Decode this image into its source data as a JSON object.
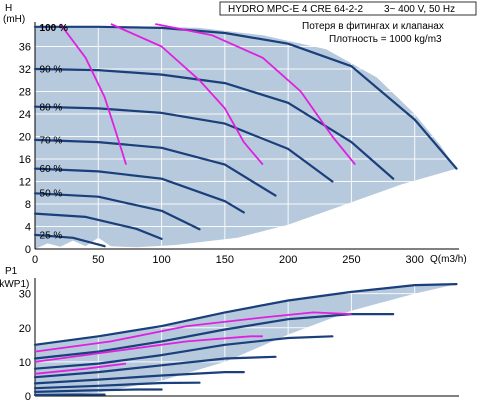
{
  "header": {
    "title": "HYDRO MPC-E 4 CRE 64-2-2",
    "supply": "3~ 400 V, 50 Hz",
    "note1": "Потеря в фитингах и клапанах",
    "note2": "Плотность = 1000 kg/m3"
  },
  "colors": {
    "envelope": "#b7c9dc",
    "speed_curve": "#1a3f7a",
    "system_curve": "#e020e0",
    "axis": "#000000"
  },
  "chart_data": [
    {
      "type": "area",
      "panel": "head",
      "ylabel_top": "H",
      "ylabel_unit": "(mH)",
      "xlabel": "Q(m3/h)",
      "xlim": [
        0,
        335
      ],
      "ylim": [
        0,
        40
      ],
      "x_ticks": [
        0,
        50,
        100,
        150,
        200,
        250,
        300
      ],
      "y_ticks": [
        0,
        4,
        8,
        12,
        16,
        20,
        24,
        28,
        32,
        36
      ],
      "envelope": [
        [
          0,
          39.5
        ],
        [
          30,
          39.6
        ],
        [
          80,
          39.6
        ],
        [
          130,
          39.3
        ],
        [
          180,
          38
        ],
        [
          230,
          35.5
        ],
        [
          270,
          30.5
        ],
        [
          300,
          24
        ],
        [
          320,
          18.5
        ],
        [
          333,
          14.3
        ],
        [
          290,
          11.5
        ],
        [
          240,
          7.5
        ],
        [
          200,
          4.3
        ],
        [
          160,
          2
        ],
        [
          110,
          0.7
        ],
        [
          80,
          0.3
        ],
        [
          60,
          0.5
        ],
        [
          50,
          2
        ],
        [
          40,
          0.5
        ],
        [
          30,
          1.5
        ],
        [
          20,
          0.4
        ],
        [
          10,
          1
        ],
        [
          0,
          0
        ]
      ],
      "speed_curves": [
        {
          "label": "100 %",
          "points": [
            [
              0,
              39.5
            ],
            [
              50,
              39.5
            ],
            [
              100,
              39.3
            ],
            [
              150,
              38.4
            ],
            [
              200,
              36.5
            ],
            [
              250,
              32.5
            ],
            [
              300,
              23
            ],
            [
              333,
              14.3
            ]
          ]
        },
        {
          "label": "90 %",
          "points": [
            [
              0,
              32
            ],
            [
              50,
              31.8
            ],
            [
              100,
              31
            ],
            [
              150,
              29.5
            ],
            [
              200,
              26
            ],
            [
              250,
              19
            ],
            [
              283,
              12.5
            ]
          ]
        },
        {
          "label": "80 %",
          "points": [
            [
              0,
              25.3
            ],
            [
              50,
              25
            ],
            [
              100,
              24.2
            ],
            [
              150,
              22.3
            ],
            [
              200,
              17.8
            ],
            [
              235,
              12
            ]
          ]
        },
        {
          "label": "70 %",
          "points": [
            [
              0,
              19.4
            ],
            [
              50,
              19
            ],
            [
              100,
              18
            ],
            [
              150,
              15
            ],
            [
              190,
              9.5
            ]
          ]
        },
        {
          "label": "60 %",
          "points": [
            [
              0,
              14.3
            ],
            [
              50,
              13.8
            ],
            [
              100,
              12.5
            ],
            [
              150,
              8.5
            ],
            [
              165,
              6.5
            ]
          ]
        },
        {
          "label": "50 %",
          "points": [
            [
              0,
              9.9
            ],
            [
              50,
              9.3
            ],
            [
              100,
              6.8
            ],
            [
              130,
              3.5
            ]
          ]
        },
        {
          "label": "",
          "points": [
            [
              0,
              6.3
            ],
            [
              40,
              5.7
            ],
            [
              80,
              3.6
            ],
            [
              100,
              1.8
            ]
          ]
        },
        {
          "label": "25 %",
          "points": [
            [
              0,
              2.5
            ],
            [
              30,
              2
            ],
            [
              55,
              0.5
            ]
          ]
        }
      ],
      "system_curves": [
        {
          "points": [
            [
              20,
              40
            ],
            [
              40,
              34
            ],
            [
              55,
              27
            ],
            [
              65,
              20
            ],
            [
              72,
              15
            ]
          ]
        },
        {
          "points": [
            [
              60,
              40
            ],
            [
              100,
              36
            ],
            [
              130,
              30
            ],
            [
              150,
              25
            ],
            [
              165,
              19
            ],
            [
              180,
              15
            ]
          ]
        },
        {
          "points": [
            [
              95,
              40
            ],
            [
              140,
              38
            ],
            [
              180,
              34
            ],
            [
              210,
              28
            ],
            [
              235,
              20
            ],
            [
              253,
              15
            ]
          ]
        }
      ],
      "percent_labels": [
        {
          "text": "100 %",
          "bold": true,
          "x": 2,
          "y": 38.8
        },
        {
          "text": "90 %",
          "bold": false,
          "x": 2,
          "y": 31.4
        },
        {
          "text": "80 %",
          "bold": false,
          "x": 2,
          "y": 24.6
        },
        {
          "text": "70 %",
          "bold": false,
          "x": 2,
          "y": 18.8
        },
        {
          "text": "60 %",
          "bold": false,
          "x": 2,
          "y": 13.7
        },
        {
          "text": "50 %",
          "bold": false,
          "x": 2,
          "y": 9.3
        },
        {
          "text": "25 %",
          "bold": false,
          "x": 2,
          "y": 1.9
        }
      ]
    },
    {
      "type": "area",
      "panel": "power",
      "ylabel_top": "P1",
      "ylabel_unit": "(kWP1)",
      "xlim": [
        0,
        335
      ],
      "ylim": [
        0,
        34
      ],
      "y_ticks": [
        0,
        10,
        20,
        30
      ],
      "envelope": [
        [
          0,
          15
        ],
        [
          50,
          17.5
        ],
        [
          100,
          20.5
        ],
        [
          150,
          24.5
        ],
        [
          200,
          28
        ],
        [
          250,
          30.5
        ],
        [
          300,
          32.5
        ],
        [
          333,
          32.8
        ],
        [
          300,
          30
        ],
        [
          250,
          25
        ],
        [
          200,
          18
        ],
        [
          150,
          10
        ],
        [
          100,
          4.5
        ],
        [
          50,
          1
        ],
        [
          0,
          0
        ]
      ],
      "speed_curves": [
        {
          "points": [
            [
              0,
              15
            ],
            [
              50,
              17.5
            ],
            [
              100,
              20.5
            ],
            [
              150,
              24.5
            ],
            [
              200,
              28
            ],
            [
              250,
              30.5
            ],
            [
              300,
              32.5
            ],
            [
              333,
              32.8
            ]
          ]
        },
        {
          "points": [
            [
              0,
              11
            ],
            [
              50,
              13
            ],
            [
              100,
              16
            ],
            [
              150,
              19.5
            ],
            [
              200,
              22.5
            ],
            [
              250,
              24
            ],
            [
              283,
              24
            ]
          ]
        },
        {
          "points": [
            [
              0,
              8
            ],
            [
              50,
              9.5
            ],
            [
              100,
              12
            ],
            [
              150,
              15
            ],
            [
              200,
              17
            ],
            [
              235,
              17.5
            ]
          ]
        },
        {
          "points": [
            [
              0,
              5.5
            ],
            [
              50,
              7
            ],
            [
              100,
              9
            ],
            [
              150,
              11
            ],
            [
              190,
              11.5
            ]
          ]
        },
        {
          "points": [
            [
              0,
              3.7
            ],
            [
              50,
              4.8
            ],
            [
              100,
              6
            ],
            [
              150,
              7
            ],
            [
              165,
              7
            ]
          ]
        },
        {
          "points": [
            [
              0,
              2.3
            ],
            [
              50,
              3
            ],
            [
              100,
              3.8
            ],
            [
              130,
              3.9
            ]
          ]
        },
        {
          "points": [
            [
              0,
              1.2
            ],
            [
              40,
              1.6
            ],
            [
              80,
              1.9
            ],
            [
              100,
              1.9
            ]
          ]
        },
        {
          "points": [
            [
              0,
              0.3
            ],
            [
              30,
              0.4
            ],
            [
              55,
              0.4
            ]
          ]
        }
      ],
      "system_curves": [
        {
          "points": [
            [
              0,
              13
            ],
            [
              60,
              16
            ],
            [
              120,
              20.5
            ],
            [
              180,
              23
            ],
            [
              220,
              24.5
            ],
            [
              250,
              24
            ]
          ]
        },
        {
          "points": [
            [
              0,
              10
            ],
            [
              60,
              13
            ],
            [
              120,
              16
            ],
            [
              170,
              17.5
            ],
            [
              180,
              17.5
            ]
          ]
        },
        {
          "points": [
            [
              0,
              6.5
            ],
            [
              40,
              8
            ],
            [
              72,
              9.5
            ]
          ]
        }
      ]
    }
  ]
}
